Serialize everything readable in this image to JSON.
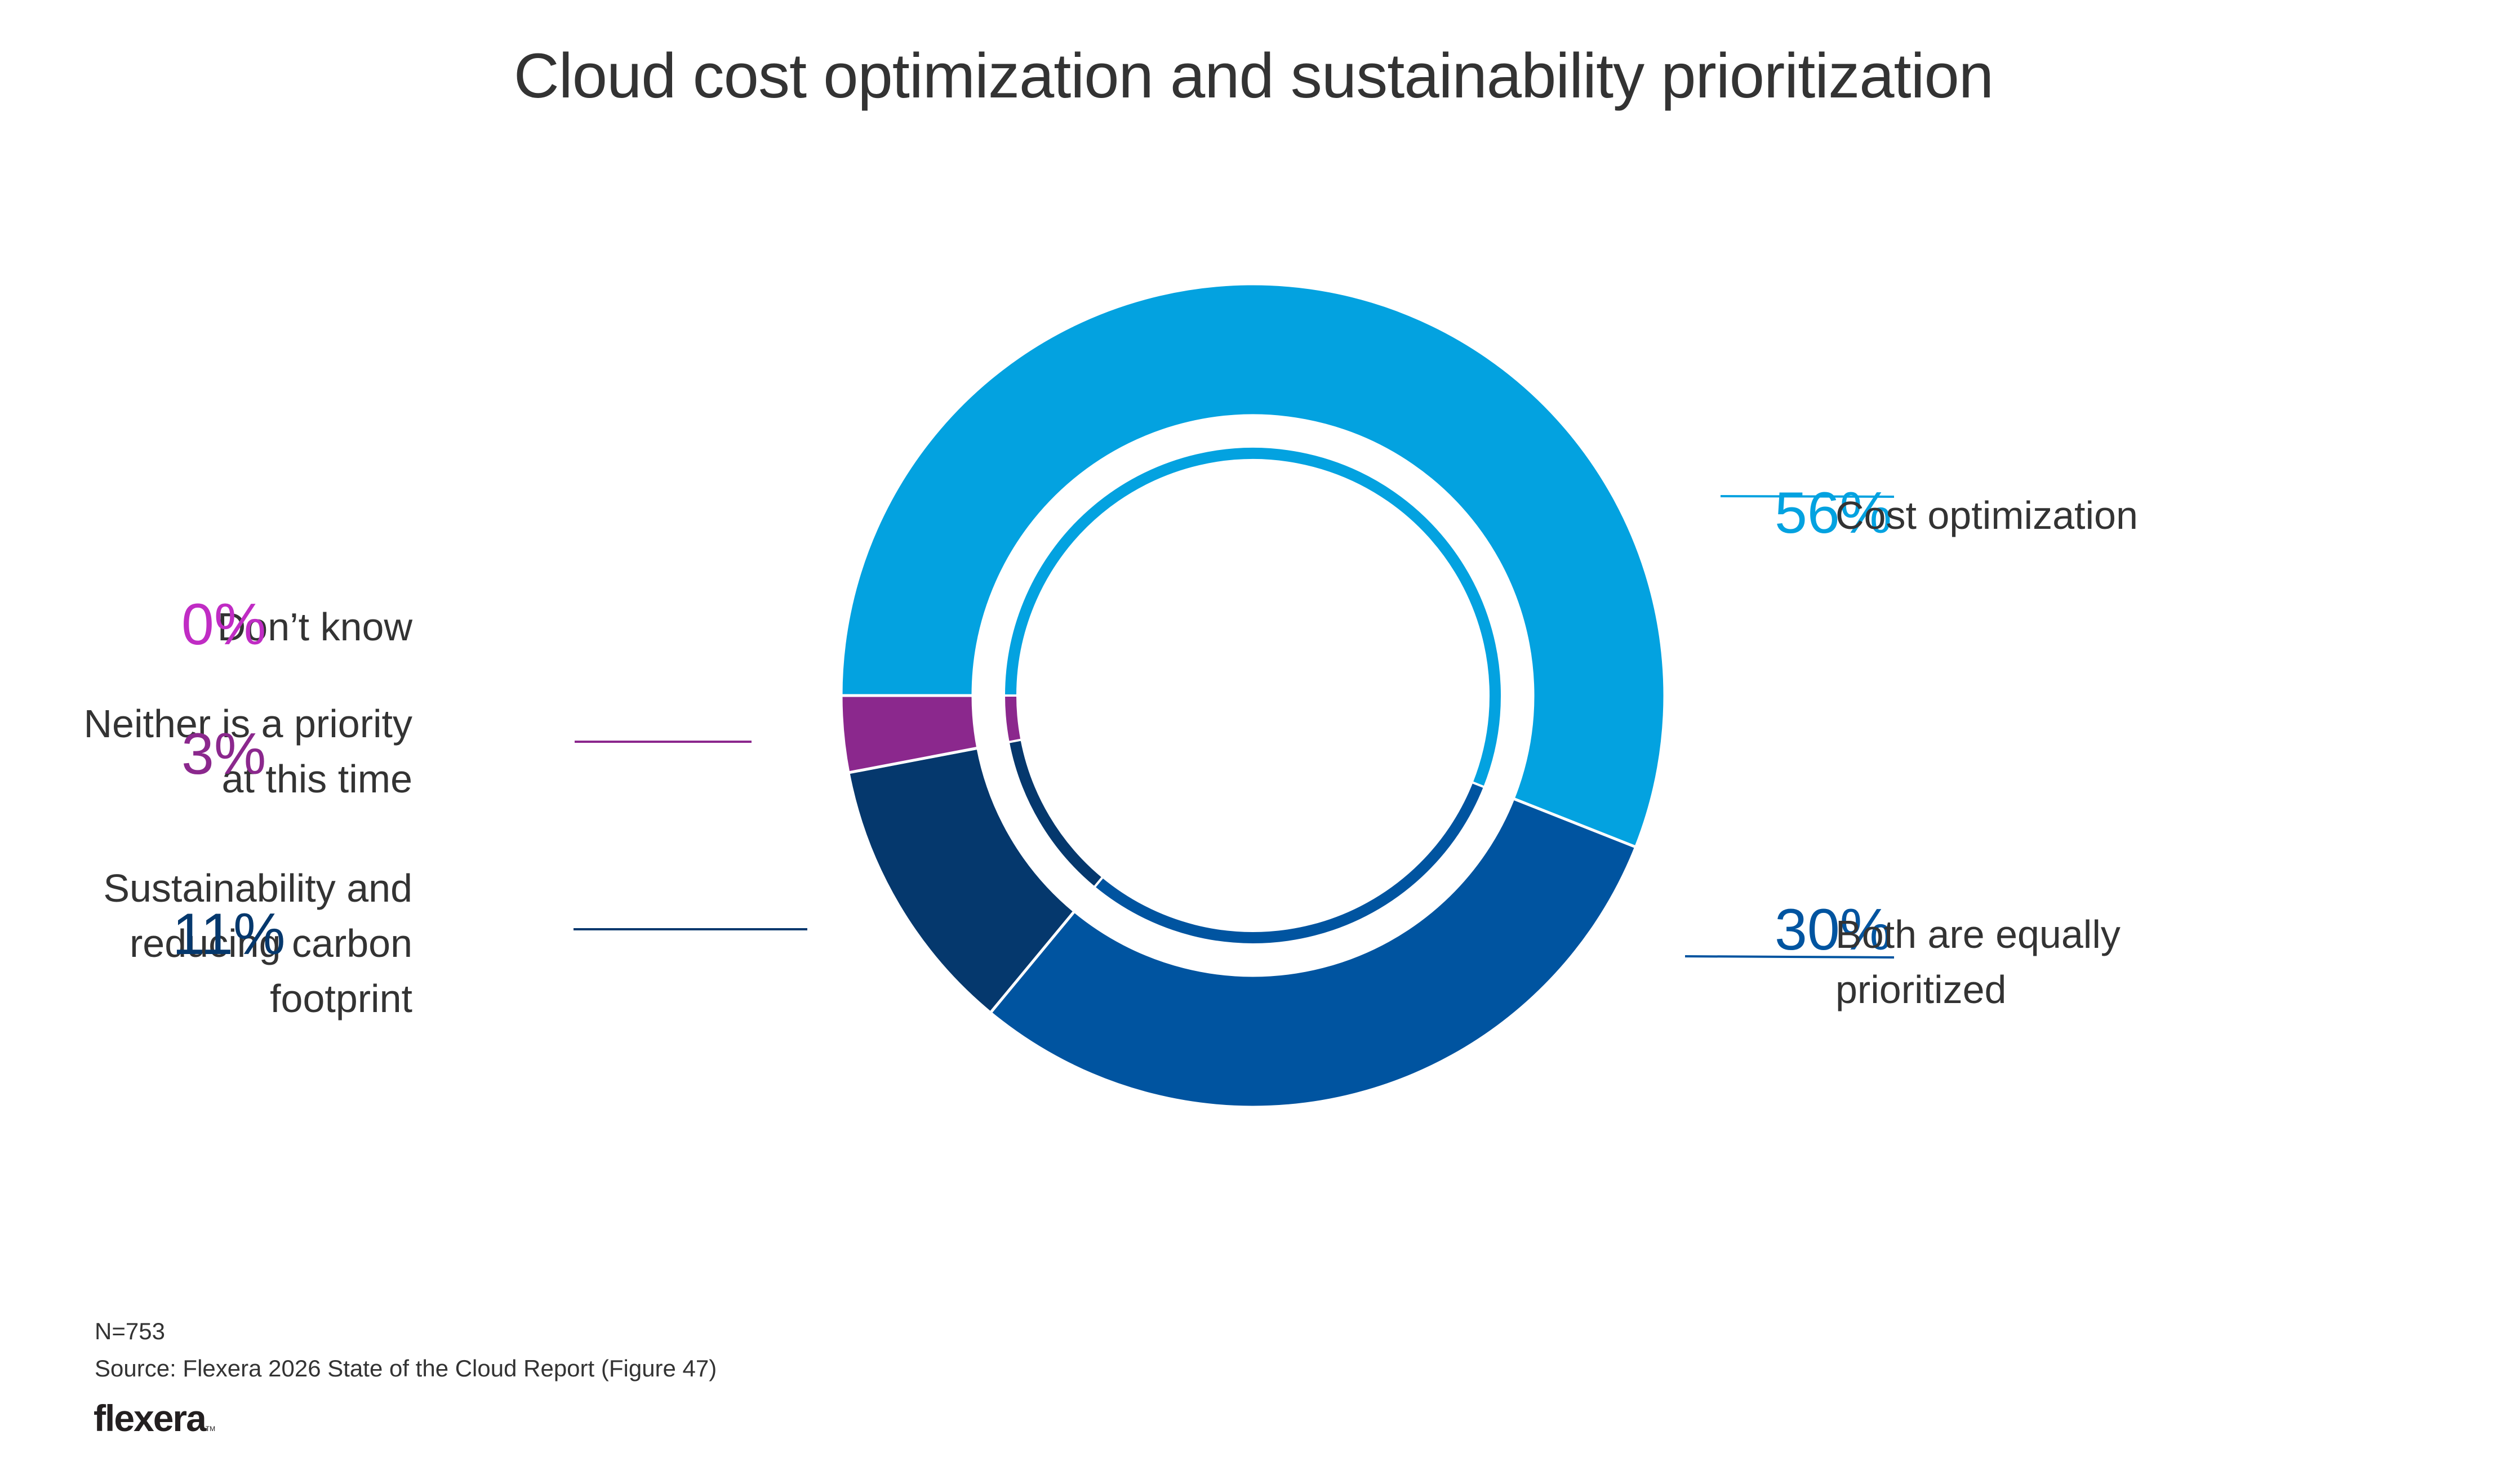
{
  "chart_data": {
    "type": "pie",
    "variant": "donut",
    "title": "Cloud cost optimization and sustainability prioritization",
    "start_angle": "9 o'clock",
    "direction": "clockwise",
    "series": [
      {
        "name": "Cost optimization",
        "value": 56,
        "label": "56%",
        "color": "#03A2E0"
      },
      {
        "name": "Both are equally prioritized",
        "value": 30,
        "label": "30%",
        "color": "#0054A0"
      },
      {
        "name": "Sustainability and reducing carbon footprint",
        "value": 11,
        "label": "11%",
        "color": "#05386D"
      },
      {
        "name": "Neither is a priority at this time",
        "value": 3,
        "label": "3%",
        "color": "#8B288D"
      },
      {
        "name": "Don’t know",
        "value": 0,
        "label": "0%",
        "color": "#C02CC4"
      }
    ],
    "legend": "none (labels placed beside slices)"
  },
  "labels": {
    "cost": {
      "pct": "56%",
      "lines": [
        "Cost optimization"
      ]
    },
    "both": {
      "pct": "30%",
      "lines": [
        "Both are equally",
        "prioritized"
      ]
    },
    "sustain": {
      "pct": "11%",
      "lines": [
        "Sustainability and",
        "reducing carbon",
        "footprint"
      ]
    },
    "neither": {
      "pct": "3%",
      "lines": [
        "Neither is a priority",
        "at this time"
      ]
    },
    "dontknow": {
      "pct": "0%",
      "lines": [
        "Don’t know"
      ]
    }
  },
  "footer": {
    "sample": "N=753",
    "source": "Source: Flexera 2026 State of the Cloud Report (Figure 47)",
    "brand": "flexera",
    "trademark": "TM"
  }
}
